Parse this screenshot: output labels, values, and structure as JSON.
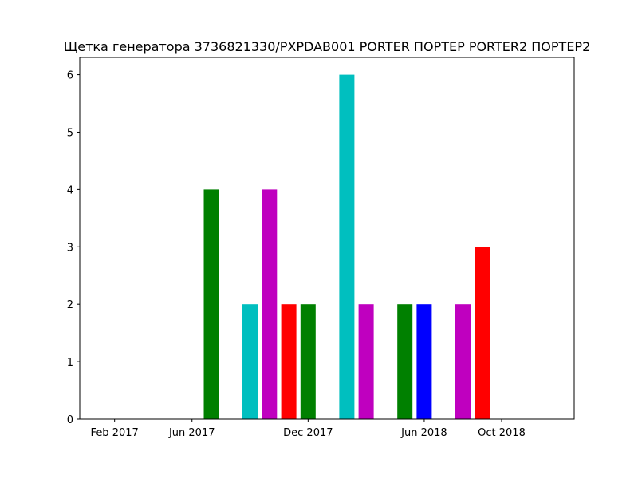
{
  "chart_data": {
    "type": "bar",
    "title": "Щетка генератора 3736821330/PXPDAB001 PORTER ПОРТЕР PORTER2 ПОРТЕР2",
    "xlabel": "",
    "ylabel": "",
    "ylim": [
      0,
      6.3
    ],
    "grid": false,
    "x_axis_type": "date",
    "x_ticks": [
      {
        "date": "2017-02",
        "label": "Feb 2017"
      },
      {
        "date": "2017-06",
        "label": "Jun 2017"
      },
      {
        "date": "2017-12",
        "label": "Dec 2017"
      },
      {
        "date": "2018-06",
        "label": "Jun 2018"
      },
      {
        "date": "2018-10",
        "label": "Oct 2018"
      }
    ],
    "y_ticks": [
      0,
      1,
      2,
      3,
      4,
      5,
      6
    ],
    "bars": [
      {
        "date": "2017-07",
        "value": 4,
        "color": "#008000"
      },
      {
        "date": "2017-09",
        "value": 2,
        "color": "#00bfbf"
      },
      {
        "date": "2017-10",
        "value": 4,
        "color": "#bf00bf"
      },
      {
        "date": "2017-11",
        "value": 2,
        "color": "#ff0000"
      },
      {
        "date": "2017-12",
        "value": 2,
        "color": "#008000"
      },
      {
        "date": "2018-02",
        "value": 6,
        "color": "#00bfbf"
      },
      {
        "date": "2018-03",
        "value": 2,
        "color": "#bf00bf"
      },
      {
        "date": "2018-05",
        "value": 2,
        "color": "#008000"
      },
      {
        "date": "2018-06",
        "value": 2,
        "color": "#0000ff"
      },
      {
        "date": "2018-08",
        "value": 2,
        "color": "#bf00bf"
      },
      {
        "date": "2018-09",
        "value": 3,
        "color": "#ff0000"
      }
    ]
  }
}
